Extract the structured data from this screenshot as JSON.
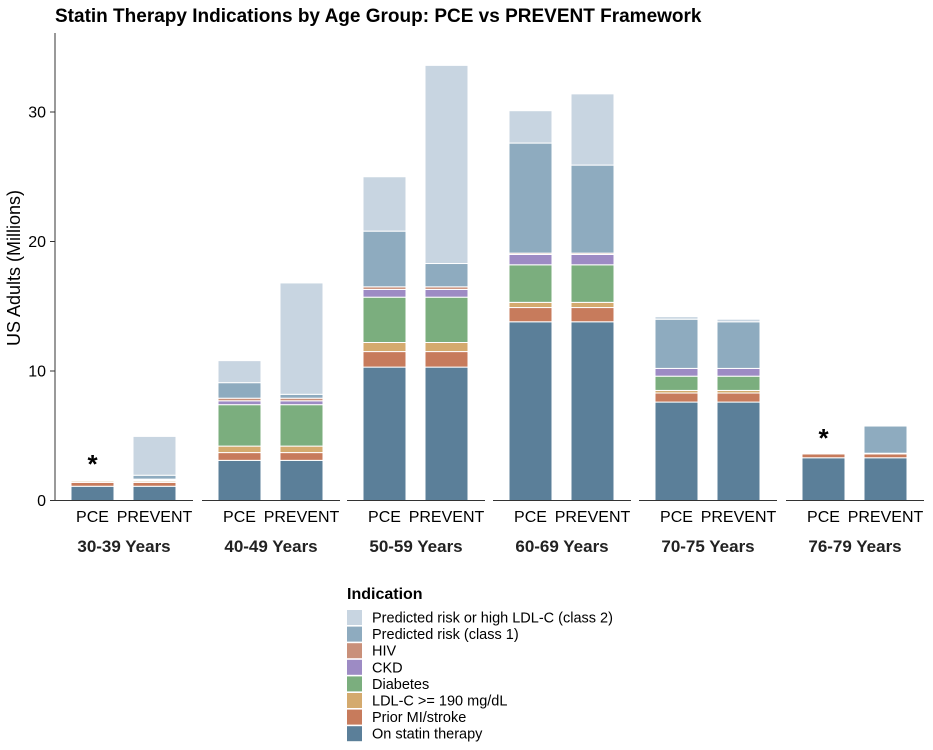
{
  "chart_data": {
    "type": "bar",
    "stacked": true,
    "title": "Statin Therapy Indications by Age Group: PCE vs PREVENT Framework",
    "ylabel": "US Adults (Millions)",
    "xlabel": "",
    "ylim": [
      0,
      35
    ],
    "yticks": [
      0,
      10,
      20,
      30
    ],
    "grid": false,
    "legend": {
      "title": "Indication",
      "placement": "bottom"
    },
    "categories": [
      "PCE",
      "PREVENT"
    ],
    "facets": [
      "30-39 Years",
      "40-49 Years",
      "50-59 Years",
      "60-69 Years",
      "70-75 Years",
      "76-79 Years"
    ],
    "annotations": [
      {
        "facet": "30-39 Years",
        "category": "PCE",
        "text": "*"
      },
      {
        "facet": "76-79 Years",
        "category": "PCE",
        "text": "*"
      }
    ],
    "series": [
      {
        "name": "On statin therapy",
        "color": "#5b7f99",
        "values": [
          [
            1.1,
            1.1
          ],
          [
            3.1,
            3.1
          ],
          [
            10.3,
            10.3
          ],
          [
            13.8,
            13.8
          ],
          [
            7.6,
            7.6
          ],
          [
            3.3,
            3.3
          ]
        ]
      },
      {
        "name": "Prior MI/stroke",
        "color": "#c77b5c",
        "values": [
          [
            0.3,
            0.3
          ],
          [
            0.6,
            0.6
          ],
          [
            1.2,
            1.2
          ],
          [
            1.1,
            1.1
          ],
          [
            0.7,
            0.7
          ],
          [
            0.3,
            0.3
          ]
        ]
      },
      {
        "name": "LDL-C >= 190 mg/dL",
        "color": "#d4aa6e",
        "values": [
          [
            0.1,
            0.1
          ],
          [
            0.5,
            0.5
          ],
          [
            0.7,
            0.7
          ],
          [
            0.4,
            0.4
          ],
          [
            0.2,
            0.2
          ],
          [
            0.0,
            0.0
          ]
        ]
      },
      {
        "name": "Diabetes",
        "color": "#7bae7e",
        "values": [
          [
            0.05,
            0.05
          ],
          [
            3.2,
            3.2
          ],
          [
            3.5,
            3.5
          ],
          [
            2.9,
            2.9
          ],
          [
            1.1,
            1.1
          ],
          [
            0.0,
            0.0
          ]
        ]
      },
      {
        "name": "CKD",
        "color": "#9d8bc4",
        "values": [
          [
            0.05,
            0.05
          ],
          [
            0.3,
            0.3
          ],
          [
            0.6,
            0.6
          ],
          [
            0.8,
            0.8
          ],
          [
            0.6,
            0.6
          ],
          [
            0.05,
            0.05
          ]
        ]
      },
      {
        "name": "HIV",
        "color": "#c9907a",
        "values": [
          [
            0.05,
            0.05
          ],
          [
            0.2,
            0.2
          ],
          [
            0.2,
            0.2
          ],
          [
            0.1,
            0.1
          ],
          [
            0.0,
            0.0
          ],
          [
            0.0,
            0.0
          ]
        ]
      },
      {
        "name": "Predicted risk (class 1)",
        "color": "#8eabbf",
        "values": [
          [
            0.0,
            0.3
          ],
          [
            1.2,
            0.3
          ],
          [
            4.3,
            1.8
          ],
          [
            8.5,
            6.8
          ],
          [
            3.8,
            3.6
          ],
          [
            0.0,
            2.1
          ]
        ]
      },
      {
        "name": "Predicted risk or high LDL-C (class 2)",
        "color": "#c8d5e1",
        "values": [
          [
            0.0,
            3.0
          ],
          [
            1.7,
            8.6
          ],
          [
            4.2,
            15.3
          ],
          [
            2.5,
            5.5
          ],
          [
            0.2,
            0.2
          ],
          [
            0.0,
            0.0
          ]
        ]
      }
    ]
  }
}
